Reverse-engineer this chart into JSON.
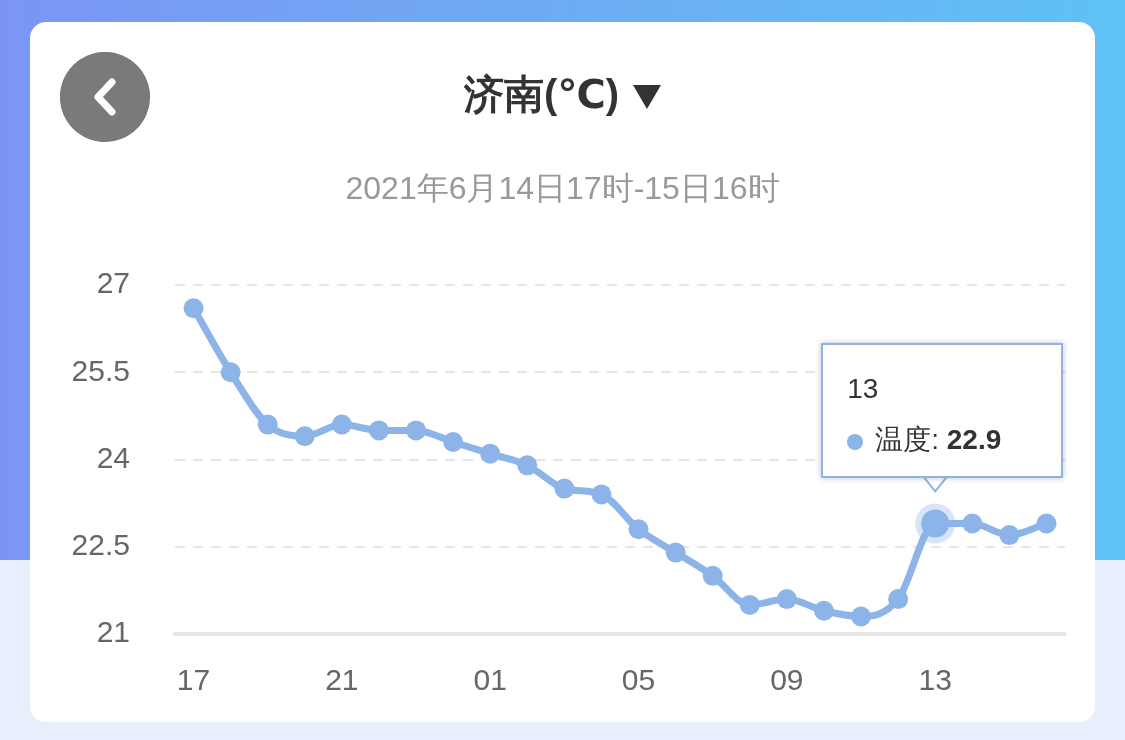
{
  "chart_data": {
    "type": "line",
    "title": "济南(℃)",
    "subtitle": "2021年6月14日17时-15日16时",
    "categories": [
      "17",
      null,
      null,
      null,
      "21",
      null,
      null,
      null,
      "01",
      null,
      null,
      null,
      "05",
      null,
      null,
      null,
      "09",
      null,
      null,
      null,
      "13",
      null,
      null,
      null
    ],
    "series": [
      {
        "name": "温度:",
        "color": "#8db4e8",
        "values": [
          26.6,
          25.5,
          24.6,
          24.4,
          24.6,
          24.5,
          24.5,
          24.3,
          24.1,
          23.9,
          23.5,
          23.4,
          22.8,
          22.4,
          22.0,
          21.5,
          21.6,
          21.4,
          21.3,
          21.6,
          22.9,
          22.9,
          22.7,
          22.9
        ],
        "value_labels": [
          null,
          null,
          null,
          null,
          null,
          null,
          null,
          null,
          null,
          null,
          null,
          null,
          null,
          null,
          null,
          null,
          null,
          null,
          null,
          null,
          "22.9",
          null,
          null,
          null
        ]
      }
    ],
    "ylim": [
      21,
      27
    ],
    "yticks": [
      21,
      22.5,
      24,
      25.5,
      27
    ],
    "grid": "y",
    "legend": "top right",
    "marker": "circle",
    "line_style": "solid",
    "annotations": [
      "13"
    ]
  }
}
